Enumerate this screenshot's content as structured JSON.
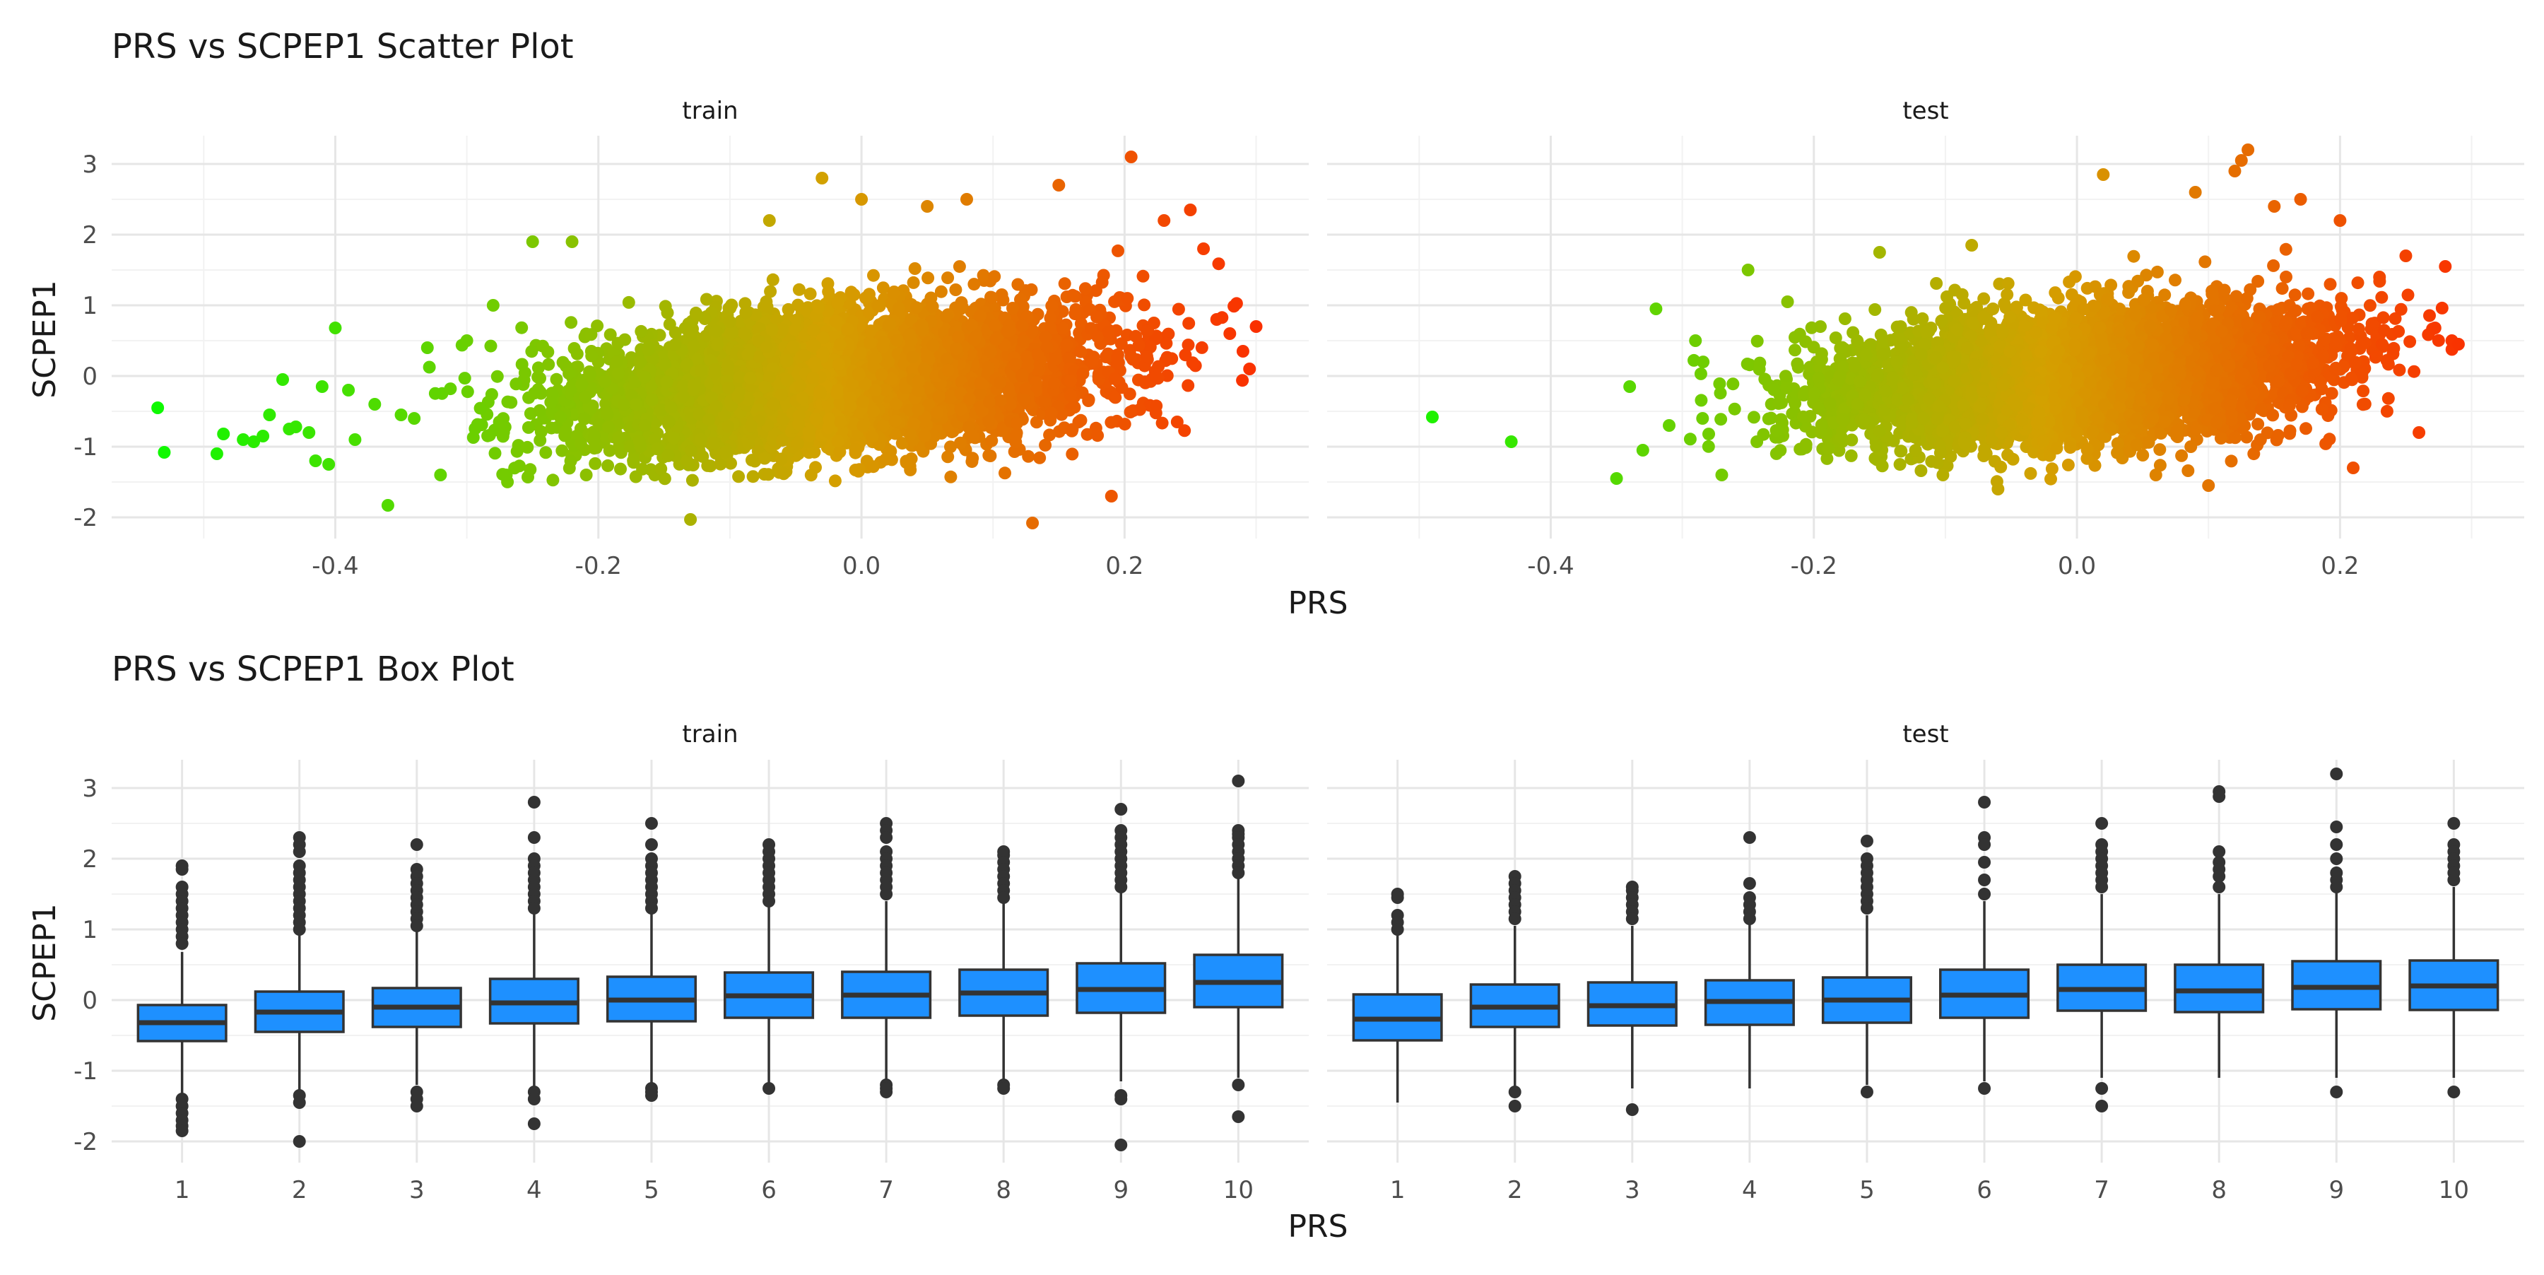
{
  "chart_data": [
    {
      "type": "scatter",
      "title": "PRS vs SCPEP1 Scatter Plot",
      "xlabel": "PRS",
      "ylabel": "SCPEP1",
      "facets": [
        "train",
        "test"
      ],
      "xlim": [
        -0.57,
        0.34
      ],
      "ylim": [
        -2.3,
        3.4
      ],
      "x_ticks": [
        -0.4,
        -0.2,
        0.0,
        0.2
      ],
      "x_tick_labels": [
        "-0.4",
        "-0.2",
        "0.0",
        "0.2"
      ],
      "y_ticks": [
        -2,
        -1,
        0,
        1,
        2,
        3
      ],
      "y_tick_labels": [
        "-2",
        "-1",
        "0",
        "1",
        "2",
        "3"
      ],
      "grid": true,
      "color_scale": {
        "low": "#00ff00",
        "mid": "#d4a000",
        "high": "#ff2200",
        "mapped_to": "PRS"
      },
      "series": [
        {
          "facet": "train",
          "summary": {
            "x_mean": -0.02,
            "x_sd": 0.1,
            "y_mean": -0.05,
            "slope": 1.5,
            "y_resid_sd": 0.48
          },
          "points": [
            [
              -0.535,
              -0.45
            ],
            [
              -0.53,
              -1.08
            ],
            [
              -0.49,
              -1.1
            ],
            [
              -0.485,
              -0.82
            ],
            [
              -0.47,
              -0.9
            ],
            [
              -0.462,
              -0.93
            ],
            [
              -0.455,
              -0.85
            ],
            [
              -0.45,
              -0.55
            ],
            [
              -0.44,
              -0.05
            ],
            [
              -0.435,
              -0.75
            ],
            [
              -0.43,
              -0.72
            ],
            [
              -0.42,
              -0.8
            ],
            [
              -0.415,
              -1.2
            ],
            [
              -0.41,
              -0.15
            ],
            [
              -0.405,
              -1.25
            ],
            [
              -0.4,
              0.68
            ],
            [
              -0.39,
              -0.2
            ],
            [
              -0.385,
              -0.9
            ],
            [
              -0.37,
              -0.4
            ],
            [
              -0.36,
              -1.83
            ],
            [
              -0.35,
              -0.55
            ],
            [
              -0.34,
              -0.6
            ],
            [
              -0.33,
              0.4
            ],
            [
              -0.32,
              -1.4
            ],
            [
              -0.3,
              0.5
            ],
            [
              -0.28,
              1.0
            ],
            [
              -0.27,
              -1.4
            ],
            [
              -0.25,
              1.9
            ],
            [
              -0.22,
              1.9
            ],
            [
              -0.13,
              -2.03
            ],
            [
              -0.07,
              2.2
            ],
            [
              -0.03,
              2.8
            ],
            [
              0.0,
              2.5
            ],
            [
              0.05,
              2.4
            ],
            [
              0.08,
              2.5
            ],
            [
              0.13,
              -2.08
            ],
            [
              0.15,
              2.7
            ],
            [
              0.19,
              -1.7
            ],
            [
              0.205,
              3.1
            ],
            [
              0.24,
              -0.65
            ],
            [
              0.25,
              2.35
            ],
            [
              0.26,
              1.8
            ],
            [
              0.28,
              0.6
            ],
            [
              0.29,
              0.35
            ],
            [
              0.3,
              0.7
            ],
            [
              0.295,
              0.1
            ],
            [
              0.27,
              0.8
            ],
            [
              0.23,
              2.2
            ]
          ]
        },
        {
          "facet": "test",
          "summary": {
            "x_mean": 0.0,
            "x_sd": 0.095,
            "y_mean": 0.0,
            "slope": 1.5,
            "y_resid_sd": 0.45
          },
          "points": [
            [
              -0.49,
              -0.58
            ],
            [
              -0.43,
              -0.93
            ],
            [
              -0.35,
              -1.45
            ],
            [
              -0.34,
              -0.15
            ],
            [
              -0.33,
              -1.05
            ],
            [
              -0.32,
              0.95
            ],
            [
              -0.31,
              -0.7
            ],
            [
              -0.29,
              0.5
            ],
            [
              -0.27,
              -1.4
            ],
            [
              -0.25,
              1.5
            ],
            [
              -0.22,
              1.05
            ],
            [
              -0.15,
              1.75
            ],
            [
              -0.08,
              1.85
            ],
            [
              -0.06,
              -1.6
            ],
            [
              0.02,
              2.85
            ],
            [
              0.06,
              -1.4
            ],
            [
              0.09,
              2.6
            ],
            [
              0.1,
              -1.55
            ],
            [
              0.12,
              2.9
            ],
            [
              0.125,
              3.05
            ],
            [
              0.13,
              3.2
            ],
            [
              0.15,
              2.4
            ],
            [
              0.17,
              2.5
            ],
            [
              0.2,
              2.2
            ],
            [
              0.21,
              -1.3
            ],
            [
              0.23,
              1.4
            ],
            [
              0.25,
              1.7
            ],
            [
              0.26,
              -0.8
            ],
            [
              0.28,
              1.55
            ],
            [
              0.285,
              0.5
            ],
            [
              0.29,
              0.45
            ]
          ]
        }
      ]
    },
    {
      "type": "box",
      "title": "PRS vs SCPEP1 Box Plot",
      "xlabel": "PRS",
      "ylabel": "SCPEP1",
      "facets": [
        "train",
        "test"
      ],
      "categories": [
        "1",
        "2",
        "3",
        "4",
        "5",
        "6",
        "7",
        "8",
        "9",
        "10"
      ],
      "ylim": [
        -2.3,
        3.4
      ],
      "y_ticks": [
        -2,
        -1,
        0,
        1,
        2,
        3
      ],
      "y_tick_labels": [
        "-2",
        "-1",
        "0",
        "1",
        "2",
        "3"
      ],
      "grid": true,
      "box_color": "#1e90ff",
      "series": [
        {
          "facet": "train",
          "boxes": [
            {
              "category": "1",
              "q1": -0.58,
              "median": -0.32,
              "q3": -0.07,
              "whisker_low": -1.38,
              "whisker_high": 0.68,
              "outliers": [
                1.9,
                1.85,
                1.6,
                1.5,
                1.4,
                1.3,
                1.2,
                1.1,
                1.0,
                0.9,
                0.8,
                -1.4,
                -1.5,
                -1.6,
                -1.7,
                -1.78,
                -1.85
              ]
            },
            {
              "category": "2",
              "q1": -0.45,
              "median": -0.17,
              "q3": 0.12,
              "whisker_low": -1.28,
              "whisker_high": 0.95,
              "outliers": [
                2.3,
                2.2,
                2.1,
                1.9,
                1.8,
                1.7,
                1.6,
                1.5,
                1.4,
                1.3,
                1.2,
                1.1,
                1.0,
                -1.35,
                -1.45,
                -2.0
              ]
            },
            {
              "category": "3",
              "q1": -0.38,
              "median": -0.1,
              "q3": 0.17,
              "whisker_low": -1.2,
              "whisker_high": 1.0,
              "outliers": [
                2.2,
                1.85,
                1.75,
                1.65,
                1.55,
                1.45,
                1.35,
                1.25,
                1.15,
                1.05,
                -1.3,
                -1.4,
                -1.5
              ]
            },
            {
              "category": "4",
              "q1": -0.33,
              "median": -0.04,
              "q3": 0.3,
              "whisker_low": -1.25,
              "whisker_high": 1.25,
              "outliers": [
                2.8,
                2.3,
                2.0,
                1.9,
                1.8,
                1.7,
                1.6,
                1.5,
                1.4,
                1.3,
                -1.3,
                -1.4,
                -1.75
              ]
            },
            {
              "category": "5",
              "q1": -0.3,
              "median": 0.0,
              "q3": 0.33,
              "whisker_low": -1.2,
              "whisker_high": 1.25,
              "outliers": [
                2.5,
                2.2,
                2.0,
                1.9,
                1.8,
                1.7,
                1.6,
                1.5,
                1.4,
                1.3,
                -1.25,
                -1.3,
                -1.35
              ]
            },
            {
              "category": "6",
              "q1": -0.25,
              "median": 0.06,
              "q3": 0.39,
              "whisker_low": -1.2,
              "whisker_high": 1.35,
              "outliers": [
                2.2,
                2.1,
                2.0,
                1.9,
                1.8,
                1.7,
                1.6,
                1.5,
                1.4,
                -1.25
              ]
            },
            {
              "category": "7",
              "q1": -0.25,
              "median": 0.07,
              "q3": 0.4,
              "whisker_low": -1.15,
              "whisker_high": 1.4,
              "outliers": [
                2.5,
                2.4,
                2.3,
                2.1,
                2.0,
                1.9,
                1.8,
                1.7,
                1.6,
                1.5,
                -1.2,
                -1.25,
                -1.3
              ]
            },
            {
              "category": "8",
              "q1": -0.22,
              "median": 0.1,
              "q3": 0.43,
              "whisker_low": -1.15,
              "whisker_high": 1.4,
              "outliers": [
                2.1,
                2.05,
                1.95,
                1.85,
                1.75,
                1.65,
                1.55,
                1.45,
                -1.2,
                -1.25
              ]
            },
            {
              "category": "9",
              "q1": -0.18,
              "median": 0.15,
              "q3": 0.52,
              "whisker_low": -1.15,
              "whisker_high": 1.55,
              "outliers": [
                2.7,
                2.4,
                2.3,
                2.2,
                2.1,
                2.0,
                1.9,
                1.8,
                1.7,
                1.6,
                -1.35,
                -1.4,
                -2.05
              ]
            },
            {
              "category": "10",
              "q1": -0.1,
              "median": 0.25,
              "q3": 0.64,
              "whisker_low": -1.1,
              "whisker_high": 1.75,
              "outliers": [
                3.1,
                2.4,
                2.35,
                2.3,
                2.2,
                2.1,
                2.0,
                1.9,
                1.8,
                -1.2,
                -1.65
              ]
            }
          ]
        },
        {
          "facet": "test",
          "boxes": [
            {
              "category": "1",
              "q1": -0.57,
              "median": -0.27,
              "q3": 0.08,
              "whisker_low": -1.45,
              "whisker_high": 0.95,
              "outliers": [
                1.5,
                1.45,
                1.2,
                1.1,
                1.0
              ]
            },
            {
              "category": "2",
              "q1": -0.38,
              "median": -0.1,
              "q3": 0.22,
              "whisker_low": -1.25,
              "whisker_high": 1.05,
              "outliers": [
                1.75,
                1.65,
                1.55,
                1.45,
                1.35,
                1.25,
                1.15,
                -1.3,
                -1.5
              ]
            },
            {
              "category": "3",
              "q1": -0.36,
              "median": -0.08,
              "q3": 0.25,
              "whisker_low": -1.25,
              "whisker_high": 1.05,
              "outliers": [
                1.6,
                1.55,
                1.45,
                1.35,
                1.25,
                1.15,
                -1.55
              ]
            },
            {
              "category": "4",
              "q1": -0.35,
              "median": -0.02,
              "q3": 0.28,
              "whisker_low": -1.25,
              "whisker_high": 1.1,
              "outliers": [
                2.3,
                1.65,
                1.45,
                1.35,
                1.25,
                1.15
              ]
            },
            {
              "category": "5",
              "q1": -0.32,
              "median": 0.0,
              "q3": 0.32,
              "whisker_low": -1.2,
              "whisker_high": 1.2,
              "outliers": [
                2.25,
                2.0,
                1.9,
                1.8,
                1.7,
                1.6,
                1.5,
                1.4,
                1.3,
                -1.3
              ]
            },
            {
              "category": "6",
              "q1": -0.25,
              "median": 0.07,
              "q3": 0.43,
              "whisker_low": -1.15,
              "whisker_high": 1.4,
              "outliers": [
                2.8,
                2.3,
                2.2,
                1.95,
                1.7,
                1.5,
                -1.25
              ]
            },
            {
              "category": "7",
              "q1": -0.15,
              "median": 0.15,
              "q3": 0.5,
              "whisker_low": -1.1,
              "whisker_high": 1.5,
              "outliers": [
                2.5,
                2.2,
                2.1,
                2.0,
                1.9,
                1.8,
                1.7,
                1.6,
                -1.25,
                -1.5
              ]
            },
            {
              "category": "8",
              "q1": -0.17,
              "median": 0.13,
              "q3": 0.5,
              "whisker_low": -1.1,
              "whisker_high": 1.5,
              "outliers": [
                2.95,
                2.88,
                2.1,
                1.95,
                1.85,
                1.75,
                1.6
              ]
            },
            {
              "category": "9",
              "q1": -0.13,
              "median": 0.18,
              "q3": 0.55,
              "whisker_low": -1.1,
              "whisker_high": 1.55,
              "outliers": [
                3.2,
                2.45,
                2.2,
                2.0,
                1.8,
                1.7,
                1.6,
                -1.3
              ]
            },
            {
              "category": "10",
              "q1": -0.14,
              "median": 0.2,
              "q3": 0.56,
              "whisker_low": -1.1,
              "whisker_high": 1.6,
              "outliers": [
                2.5,
                2.2,
                2.1,
                2.0,
                1.9,
                1.8,
                1.7,
                -1.3
              ]
            }
          ]
        }
      ]
    }
  ]
}
